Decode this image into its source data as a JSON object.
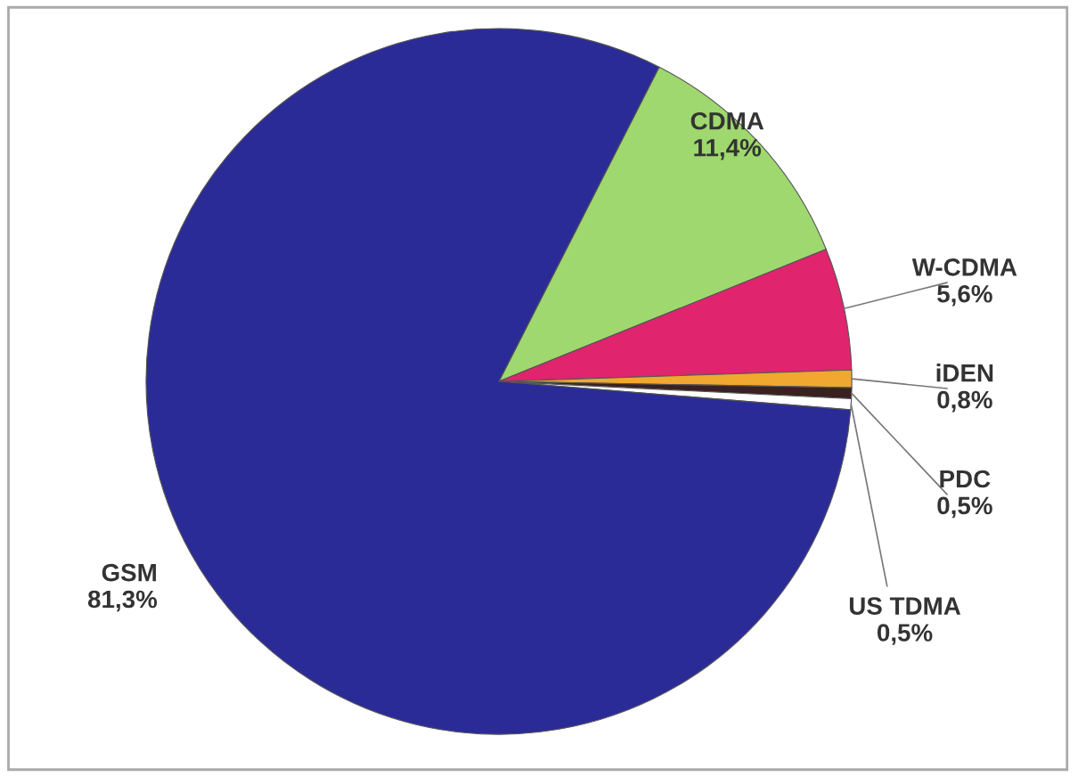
{
  "chart_data": {
    "type": "pie",
    "categories": [
      "CDMA",
      "W-CDMA",
      "iDEN",
      "PDC",
      "US TDMA",
      "GSM"
    ],
    "values": [
      11.4,
      5.6,
      0.8,
      0.5,
      0.5,
      81.3
    ],
    "value_labels": [
      "11,4%",
      "5,6%",
      "0,8%",
      "0,5%",
      "0,5%",
      "81,3%"
    ],
    "colors": [
      "#9fd86e",
      "#e0246e",
      "#f0a830",
      "#3a2020",
      "#ffffff",
      "#2b2b98"
    ],
    "legend": false
  }
}
